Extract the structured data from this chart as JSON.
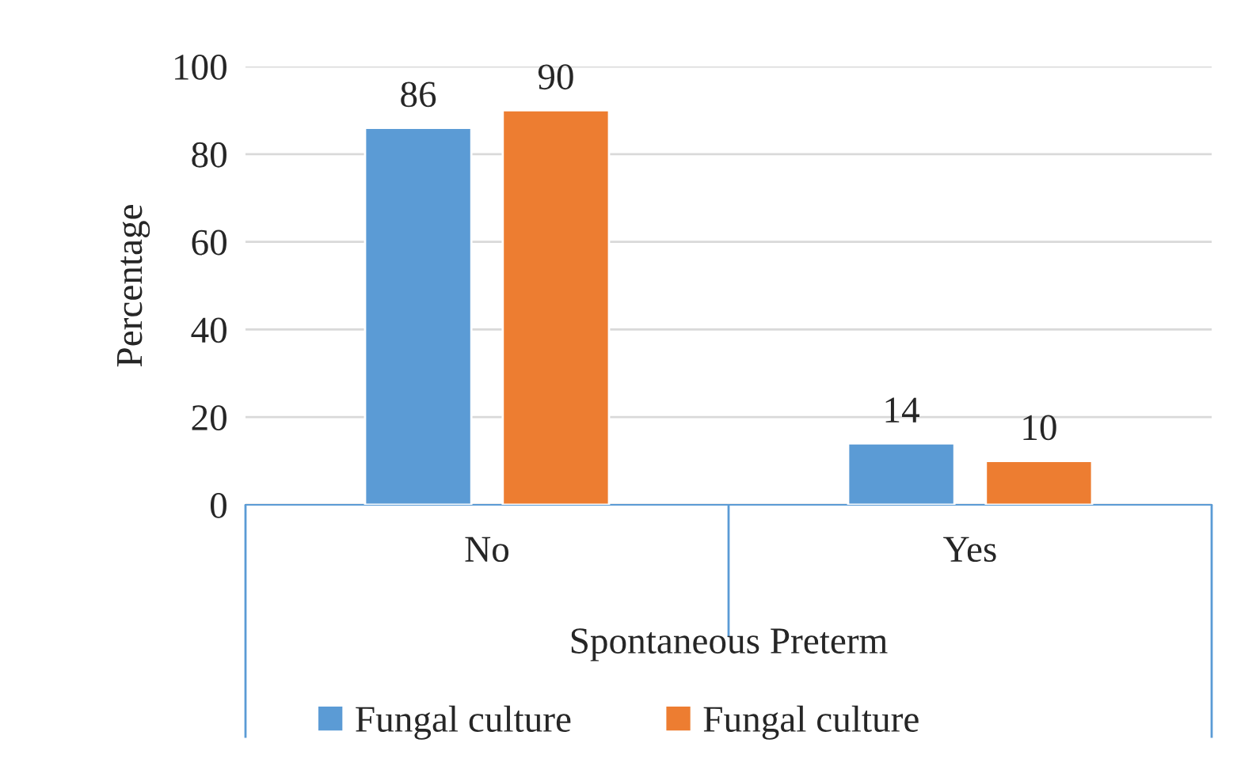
{
  "chart_data": {
    "type": "bar",
    "xlabel": "Spontaneous Preterm",
    "ylabel": "Percentage",
    "categories": [
      "No",
      "Yes"
    ],
    "series": [
      {
        "name": "Fungal culture",
        "color": "#5b9bd5",
        "values": [
          86,
          14
        ]
      },
      {
        "name": "Fungal culture",
        "color": "#ed7d31",
        "values": [
          90,
          10
        ]
      }
    ],
    "ylim": [
      0,
      100
    ],
    "yticks": [
      0,
      20,
      40,
      60,
      80,
      100
    ],
    "grid": "y",
    "legend": "bottom",
    "data_labels": true
  }
}
